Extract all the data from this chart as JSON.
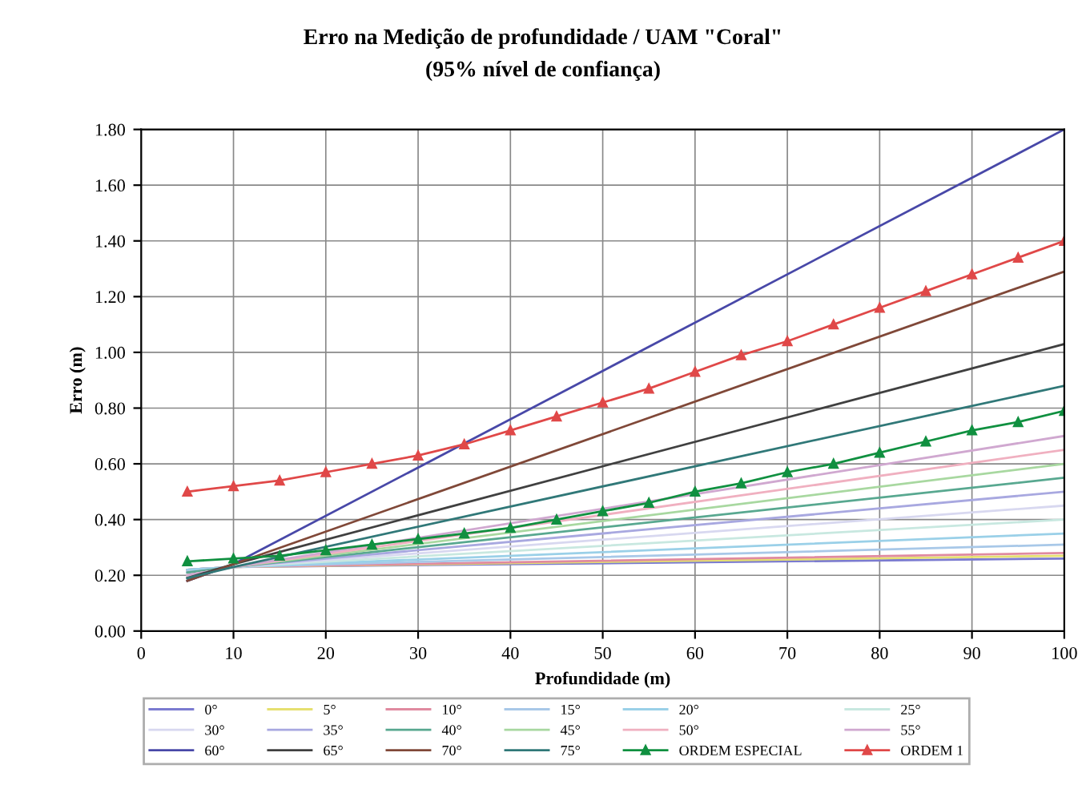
{
  "chart_data": {
    "type": "line",
    "title": "Erro na Medição de profundidade / UAM \"Coral\"",
    "subtitle": "(95% nível de confiança)",
    "xlabel": "Profundidade (m)",
    "ylabel": "Erro (m)",
    "xlim": [
      0,
      100
    ],
    "xticks": [
      0,
      10,
      20,
      30,
      40,
      50,
      60,
      70,
      80,
      90,
      100
    ],
    "ylim": [
      0,
      1.8
    ],
    "yticks": [
      {
        "value": 0,
        "label": "0.00"
      },
      {
        "value": 0.2,
        "label": "0.20"
      },
      {
        "value": 0.4,
        "label": "0.40"
      },
      {
        "value": 0.6,
        "label": "0.60"
      },
      {
        "value": 0.8,
        "label": "0.80"
      },
      {
        "value": 1.0,
        "label": "1.00"
      },
      {
        "value": 1.2,
        "label": "1.20"
      },
      {
        "value": 1.4,
        "label": "1.40"
      },
      {
        "value": 1.6,
        "label": "1.60"
      },
      {
        "value": 1.8,
        "label": "1.80"
      }
    ],
    "grid": true,
    "legend": "bottom",
    "marker": "none",
    "line_style": "solid",
    "series": [
      {
        "name": "0°",
        "color": "#7b7bd0",
        "x": [
          5,
          10,
          100
        ],
        "values": [
          0.22,
          0.23,
          0.26
        ]
      },
      {
        "name": "5°",
        "color": "#e6e070",
        "x": [
          5,
          10,
          100
        ],
        "values": [
          0.22,
          0.23,
          0.27
        ]
      },
      {
        "name": "10°",
        "color": "#e08aa0",
        "x": [
          5,
          10,
          100
        ],
        "values": [
          0.22,
          0.23,
          0.28
        ]
      },
      {
        "name": "15°",
        "color": "#a8c8e8",
        "x": [
          5,
          10,
          100
        ],
        "values": [
          0.22,
          0.23,
          0.31
        ]
      },
      {
        "name": "20°",
        "color": "#9ad0e8",
        "x": [
          5,
          10,
          100
        ],
        "values": [
          0.22,
          0.23,
          0.35
        ]
      },
      {
        "name": "25°",
        "color": "#c8e8e0",
        "x": [
          5,
          10,
          100
        ],
        "values": [
          0.21,
          0.23,
          0.4
        ]
      },
      {
        "name": "30°",
        "color": "#d8d8f0",
        "x": [
          5,
          10,
          100
        ],
        "values": [
          0.21,
          0.23,
          0.45
        ]
      },
      {
        "name": "35°",
        "color": "#a8a8e0",
        "x": [
          5,
          10,
          100
        ],
        "values": [
          0.21,
          0.23,
          0.5
        ]
      },
      {
        "name": "40°",
        "color": "#58a890",
        "x": [
          5,
          10,
          100
        ],
        "values": [
          0.21,
          0.23,
          0.55
        ]
      },
      {
        "name": "45°",
        "color": "#a8d8a0",
        "x": [
          5,
          10,
          100
        ],
        "values": [
          0.2,
          0.23,
          0.6
        ]
      },
      {
        "name": "50°",
        "color": "#f0b0c0",
        "x": [
          5,
          10,
          100
        ],
        "values": [
          0.2,
          0.23,
          0.65
        ]
      },
      {
        "name": "55°",
        "color": "#d0a8d0",
        "x": [
          5,
          10,
          100
        ],
        "values": [
          0.2,
          0.23,
          0.7
        ]
      },
      {
        "name": "60°",
        "color": "#4848a8",
        "x": [
          5,
          10,
          100
        ],
        "values": [
          0.18,
          0.24,
          1.8
        ]
      },
      {
        "name": "65°",
        "color": "#404040",
        "x": [
          5,
          10,
          100
        ],
        "values": [
          0.19,
          0.24,
          1.03
        ]
      },
      {
        "name": "70°",
        "color": "#804838",
        "x": [
          5,
          10,
          100
        ],
        "values": [
          0.18,
          0.24,
          1.29
        ]
      },
      {
        "name": "75°",
        "color": "#307878",
        "x": [
          5,
          10,
          100
        ],
        "values": [
          0.19,
          0.23,
          0.88
        ]
      },
      {
        "name": "ORDEM ESPECIAL",
        "color": "#109040",
        "marker": "triangle",
        "x": [
          5,
          10,
          15,
          20,
          25,
          30,
          35,
          40,
          45,
          50,
          55,
          60,
          65,
          70,
          75,
          80,
          85,
          90,
          95,
          100
        ],
        "values": [
          0.25,
          0.26,
          0.27,
          0.29,
          0.31,
          0.33,
          0.35,
          0.37,
          0.4,
          0.43,
          0.46,
          0.5,
          0.53,
          0.57,
          0.6,
          0.64,
          0.68,
          0.72,
          0.75,
          0.79
        ]
      },
      {
        "name": "ORDEM 1",
        "color": "#e04848",
        "marker": "triangle",
        "x": [
          5,
          10,
          15,
          20,
          25,
          30,
          35,
          40,
          45,
          50,
          55,
          60,
          65,
          70,
          75,
          80,
          85,
          90,
          95,
          100
        ],
        "values": [
          0.5,
          0.52,
          0.54,
          0.57,
          0.6,
          0.63,
          0.67,
          0.72,
          0.77,
          0.82,
          0.87,
          0.93,
          0.99,
          1.04,
          1.1,
          1.16,
          1.22,
          1.28,
          1.34,
          1.4
        ]
      }
    ]
  }
}
